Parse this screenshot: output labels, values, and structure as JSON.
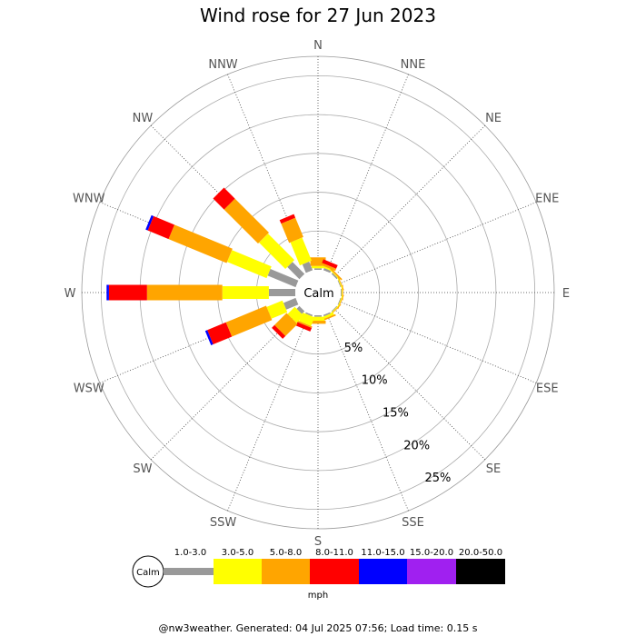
{
  "chart_data": {
    "type": "windrose",
    "title": "Wind rose for 27 Jun 2023",
    "directions": [
      "N",
      "NNE",
      "NE",
      "ENE",
      "E",
      "ESE",
      "SE",
      "SSE",
      "S",
      "SSW",
      "SW",
      "WSW",
      "W",
      "WNW",
      "NW",
      "NNW"
    ],
    "radial_ticks": [
      "5%",
      "10%",
      "15%",
      "20%",
      "25%"
    ],
    "radial_values": [
      5,
      10,
      15,
      20,
      25
    ],
    "rmax": 27.5,
    "calm_label": "Calm",
    "speed_bins": [
      {
        "label": "1.0-3.0",
        "color": "#999999"
      },
      {
        "label": "3.0-5.0",
        "color": "#ffff00"
      },
      {
        "label": "5.0-8.0",
        "color": "#ffa500"
      },
      {
        "label": "8.0-11.0",
        "color": "#ff0000"
      },
      {
        "label": "11.0-15.0",
        "color": "#0000ff"
      },
      {
        "label": "15.0-20.0",
        "color": "#a020f0"
      },
      {
        "label": "20.0-50.0",
        "color": "#000000"
      }
    ],
    "units": "mph",
    "series": [
      {
        "direction": "N",
        "values": [
          0.2,
          0.3,
          1.1,
          0.0,
          0,
          0,
          0
        ]
      },
      {
        "direction": "NNE",
        "values": [
          0.3,
          0.2,
          0.3,
          0.5,
          0,
          0,
          0
        ]
      },
      {
        "direction": "NE",
        "values": [
          0.2,
          0.1,
          0.2,
          0.0,
          0,
          0,
          0
        ]
      },
      {
        "direction": "ENE",
        "values": [
          0.1,
          0.1,
          0.1,
          0.0,
          0,
          0,
          0
        ]
      },
      {
        "direction": "E",
        "values": [
          0.1,
          0.1,
          0.1,
          0.0,
          0,
          0,
          0
        ]
      },
      {
        "direction": "ESE",
        "values": [
          0.1,
          0.1,
          0.1,
          0.0,
          0,
          0,
          0
        ]
      },
      {
        "direction": "SE",
        "values": [
          0.1,
          0.1,
          0.1,
          0.0,
          0,
          0,
          0
        ]
      },
      {
        "direction": "SSE",
        "values": [
          0.2,
          0.3,
          0.2,
          0.0,
          0,
          0,
          0
        ]
      },
      {
        "direction": "S",
        "values": [
          0.2,
          0.5,
          0.4,
          0.0,
          0,
          0,
          0
        ]
      },
      {
        "direction": "SSW",
        "values": [
          0.2,
          1.2,
          0.2,
          0.5,
          0,
          0,
          0
        ]
      },
      {
        "direction": "SW",
        "values": [
          0.5,
          1.3,
          2.2,
          0.5,
          0,
          0,
          0
        ]
      },
      {
        "direction": "WSW",
        "values": [
          1.7,
          2.2,
          5.6,
          2.6,
          0.3,
          0,
          0
        ]
      },
      {
        "direction": "W",
        "values": [
          3.4,
          6.0,
          9.7,
          4.9,
          0.3,
          0,
          0
        ]
      },
      {
        "direction": "WNW",
        "values": [
          3.9,
          5.5,
          8.1,
          2.9,
          0.3,
          0,
          0
        ]
      },
      {
        "direction": "NW",
        "values": [
          2.2,
          4.8,
          6.2,
          2.0,
          0.0,
          0,
          0
        ]
      },
      {
        "direction": "NNW",
        "values": [
          1.2,
          3.2,
          2.7,
          0.5,
          0,
          0,
          0
        ]
      }
    ]
  },
  "footer": "@nw3weather. Generated: 04 Jul 2025 07:56; Load time: 0.15 s"
}
